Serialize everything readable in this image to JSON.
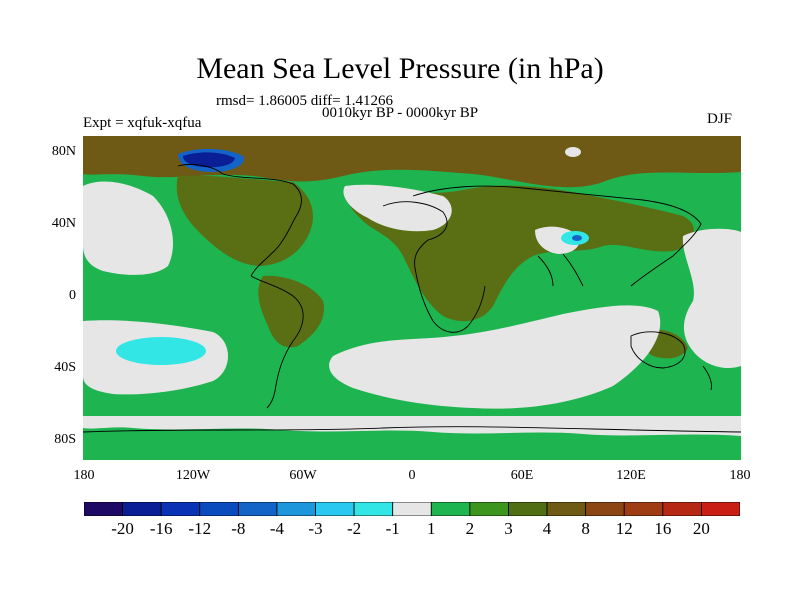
{
  "title": "Mean Sea Level Pressure (in hPa)",
  "stats_line": "rmsd= 1.86005 diff= 1.41266",
  "period_line": "0010kyr BP - 0000kyr BP",
  "experiment_line": "Expt = xqfuk-xqfua",
  "season": "DJF",
  "y_ticks": [
    "80N",
    "40N",
    "0",
    "40S",
    "80S"
  ],
  "x_ticks": [
    "180",
    "120W",
    "60W",
    "0",
    "60E",
    "120E",
    "180"
  ],
  "colorbar": {
    "colors": [
      "#1e0a64",
      "#0a1e96",
      "#0a32b4",
      "#0a4bbe",
      "#1464c8",
      "#1e96dc",
      "#28c8f0",
      "#32e6e6",
      "#e6e6e6",
      "#1eb450",
      "#3c961e",
      "#506e14",
      "#6e5a14",
      "#8c4614",
      "#a03c14",
      "#b42814",
      "#c81e14"
    ],
    "labels": [
      "-20",
      "-16",
      "-12",
      "-8",
      "-4",
      "-3",
      "-2",
      "-1",
      "1",
      "2",
      "3",
      "4",
      "8",
      "12",
      "16",
      "20"
    ]
  },
  "map_colors": {
    "land_brown": "#5a6e14",
    "dark_brown": "#6e5a14",
    "green": "#1eb450",
    "white": "#e6e6e6",
    "cyan": "#32e6e6",
    "light_blue": "#28c8f0",
    "navy": "#0a1e96"
  }
}
